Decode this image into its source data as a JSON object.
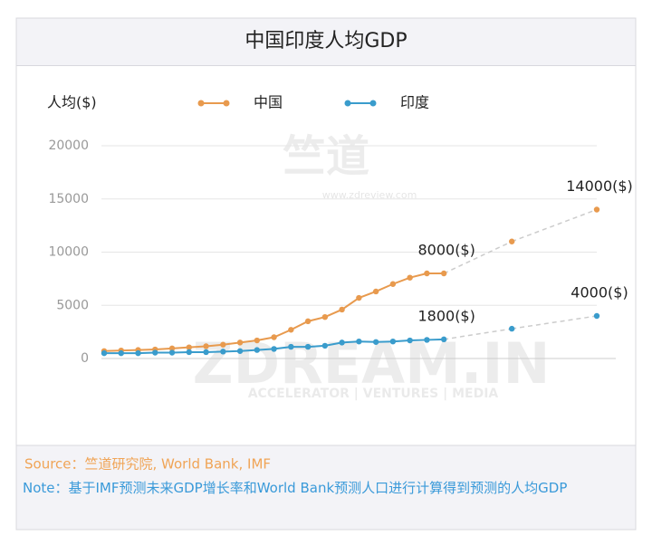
{
  "chart_data": {
    "type": "line",
    "title": "中国印度人均GDP",
    "ylabel": "人均($)",
    "categories": [
      null,
      null,
      null,
      null,
      null,
      null,
      null,
      null,
      null,
      null,
      null,
      null,
      null,
      null,
      null,
      null,
      null,
      null,
      null,
      null,
      null,
      null,
      null,
      null,
      null,
      null,
      null,
      null,
      null,
      null
    ],
    "series": [
      {
        "name": "中国",
        "color": "#e89a4e",
        "values": [
          700,
          750,
          800,
          850,
          950,
          1050,
          1150,
          1300,
          1500,
          1700,
          2000,
          2700,
          3500,
          3900,
          4600,
          5700,
          6300,
          7000,
          7600,
          8000,
          8000,
          null,
          null,
          null,
          11000,
          null,
          null,
          null,
          null,
          14000
        ],
        "value_labels": [
          null,
          null,
          null,
          null,
          null,
          null,
          null,
          null,
          null,
          null,
          null,
          null,
          null,
          null,
          null,
          null,
          null,
          null,
          null,
          null,
          "8000($)",
          null,
          null,
          null,
          null,
          null,
          null,
          null,
          null,
          "14000($)"
        ]
      },
      {
        "name": "印度",
        "color": "#3a9ccc",
        "values": [
          500,
          500,
          500,
          550,
          550,
          600,
          600,
          650,
          700,
          800,
          900,
          1100,
          1100,
          1200,
          1500,
          1600,
          1550,
          1600,
          1700,
          1750,
          1800,
          null,
          null,
          null,
          2800,
          null,
          null,
          null,
          null,
          4000
        ],
        "value_labels": [
          null,
          null,
          null,
          null,
          null,
          null,
          null,
          null,
          null,
          null,
          null,
          null,
          null,
          null,
          null,
          null,
          null,
          null,
          null,
          null,
          "1800($)",
          null,
          null,
          null,
          null,
          null,
          null,
          null,
          null,
          "4000($)"
        ]
      }
    ],
    "ylim": [
      0,
      20000
    ],
    "yticks": [
      0,
      5000,
      10000,
      15000,
      20000
    ],
    "grid": true,
    "legend": "top",
    "watermark": [
      "竺道",
      "www.zdreview.com",
      "ZDREAM.IN",
      "ACCELERATOR | VENTURES | MEDIA"
    ],
    "source": "Source：竺道研究院, World Bank, IMF",
    "note": "Note：基于IMF预测未来GDP增长率和World Bank预测人口进行计算得到预测的人均GDP"
  }
}
